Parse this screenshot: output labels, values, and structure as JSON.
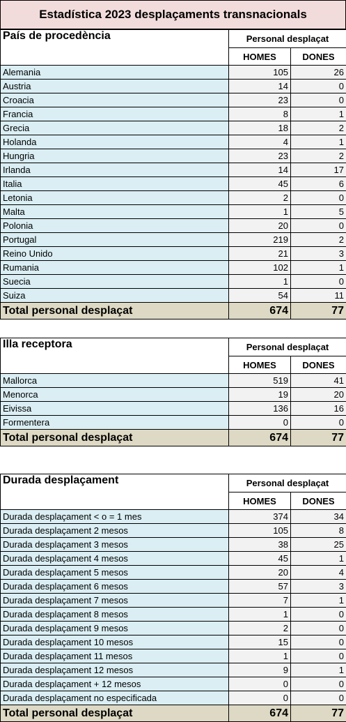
{
  "title": "Estadística 2023 desplaçaments transnacionals",
  "sections": [
    {
      "header": "País de procedència",
      "group_header": "Personal desplaçat",
      "columns": [
        "HOMES",
        "DONES"
      ],
      "rows": [
        {
          "label": "Alemania",
          "homes": "105",
          "dones": "26"
        },
        {
          "label": "Austria",
          "homes": "14",
          "dones": "0"
        },
        {
          "label": "Croacia",
          "homes": "23",
          "dones": "0"
        },
        {
          "label": "Francia",
          "homes": "8",
          "dones": "1"
        },
        {
          "label": "Grecia",
          "homes": "18",
          "dones": "2"
        },
        {
          "label": "Holanda",
          "homes": "4",
          "dones": "1"
        },
        {
          "label": "Hungria",
          "homes": "23",
          "dones": "2"
        },
        {
          "label": "Irlanda",
          "homes": "14",
          "dones": "17"
        },
        {
          "label": "Italia",
          "homes": "45",
          "dones": "6"
        },
        {
          "label": "Letonia",
          "homes": "2",
          "dones": "0"
        },
        {
          "label": "Malta",
          "homes": "1",
          "dones": "5"
        },
        {
          "label": "Polonia",
          "homes": "20",
          "dones": "0"
        },
        {
          "label": "Portugal",
          "homes": "219",
          "dones": "2"
        },
        {
          "label": "Reino Unido",
          "homes": "21",
          "dones": "3"
        },
        {
          "label": "Rumania",
          "homes": "102",
          "dones": "1"
        },
        {
          "label": "Suecia",
          "homes": "1",
          "dones": "0"
        },
        {
          "label": "Suiza",
          "homes": "54",
          "dones": "11"
        }
      ],
      "total": {
        "label": "Total personal desplaçat",
        "homes": "674",
        "dones": "77"
      }
    },
    {
      "header": "Illa receptora",
      "group_header": "Personal desplaçat",
      "columns": [
        "HOMES",
        "DONES"
      ],
      "rows": [
        {
          "label": "Mallorca",
          "homes": "519",
          "dones": "41"
        },
        {
          "label": "Menorca",
          "homes": "19",
          "dones": "20"
        },
        {
          "label": "Eivissa",
          "homes": "136",
          "dones": "16"
        },
        {
          "label": "Formentera",
          "homes": "0",
          "dones": "0"
        }
      ],
      "total": {
        "label": "Total personal desplaçat",
        "homes": "674",
        "dones": "77"
      }
    },
    {
      "header": "Durada desplaçament",
      "group_header": "Personal desplaçat",
      "columns": [
        "HOMES",
        "DONES"
      ],
      "rows": [
        {
          "label": "Durada desplaçament < o = 1 mes",
          "homes": "374",
          "dones": "34"
        },
        {
          "label": "Durada desplaçament 2 mesos",
          "homes": "105",
          "dones": "8"
        },
        {
          "label": "Durada desplaçament 3 mesos",
          "homes": "38",
          "dones": "25"
        },
        {
          "label": "Durada desplaçament 4 mesos",
          "homes": "45",
          "dones": "1"
        },
        {
          "label": "Durada desplaçament 5 mesos",
          "homes": "20",
          "dones": "4"
        },
        {
          "label": "Durada desplaçament 6 mesos",
          "homes": "57",
          "dones": "3"
        },
        {
          "label": "Durada desplaçament 7 mesos",
          "homes": "7",
          "dones": "1"
        },
        {
          "label": "Durada desplaçament 8 mesos",
          "homes": "1",
          "dones": "0"
        },
        {
          "label": "Durada desplaçament 9 mesos",
          "homes": "2",
          "dones": "0"
        },
        {
          "label": "Durada desplaçament 10 mesos",
          "homes": "15",
          "dones": "0"
        },
        {
          "label": "Durada desplaçament 11 mesos",
          "homes": "1",
          "dones": "0"
        },
        {
          "label": "Durada desplaçament 12 mesos",
          "homes": "9",
          "dones": "1"
        },
        {
          "label": "Durada desplaçament + 12 mesos",
          "homes": "0",
          "dones": "0"
        },
        {
          "label": "Durada desplaçament no especificada",
          "homes": "0",
          "dones": "0"
        }
      ],
      "total": {
        "label": "Total personal desplaçat",
        "homes": "674",
        "dones": "77"
      }
    }
  ]
}
